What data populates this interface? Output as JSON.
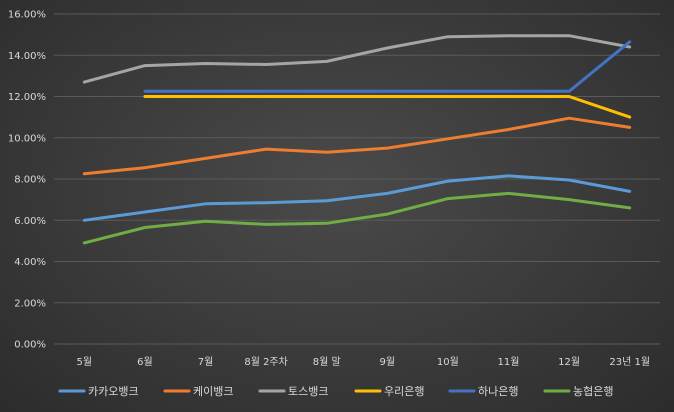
{
  "chart_data": {
    "type": "line",
    "title": "",
    "xlabel": "",
    "ylabel": "",
    "categories": [
      "5월",
      "6월",
      "7월",
      "8월 2주차",
      "8월 말",
      "9월",
      "10월",
      "11월",
      "12월",
      "23년 1월"
    ],
    "ylim": [
      0,
      16
    ],
    "y_ticks": [
      "0.00%",
      "2.00%",
      "4.00%",
      "6.00%",
      "8.00%",
      "10.00%",
      "12.00%",
      "14.00%",
      "16.00%"
    ],
    "grid": true,
    "legend_position": "bottom",
    "series": [
      {
        "name": "카카오뱅크",
        "color": "#5b9bd5",
        "values": [
          6.0,
          6.4,
          6.8,
          6.85,
          6.95,
          7.3,
          7.9,
          8.15,
          7.95,
          7.4
        ]
      },
      {
        "name": "케이뱅크",
        "color": "#ed7d31",
        "values": [
          8.25,
          8.55,
          9.0,
          9.45,
          9.3,
          9.5,
          9.95,
          10.4,
          10.95,
          10.5
        ]
      },
      {
        "name": "토스뱅크",
        "color": "#a5a5a5",
        "values": [
          12.7,
          13.5,
          13.6,
          13.55,
          13.7,
          14.35,
          14.9,
          14.95,
          14.95,
          14.4
        ]
      },
      {
        "name": "우리은행",
        "color": "#ffc000",
        "values": [
          null,
          12.0,
          12.0,
          12.0,
          12.0,
          12.0,
          12.0,
          12.0,
          12.0,
          11.0
        ]
      },
      {
        "name": "하나은행",
        "color": "#4472c4",
        "values": [
          null,
          12.25,
          12.25,
          12.25,
          12.25,
          12.25,
          12.25,
          12.25,
          12.25,
          14.65
        ]
      },
      {
        "name": "농협은행",
        "color": "#70ad47",
        "values": [
          4.9,
          5.65,
          5.95,
          5.8,
          5.85,
          6.3,
          7.05,
          7.3,
          7.0,
          6.6
        ]
      }
    ]
  }
}
